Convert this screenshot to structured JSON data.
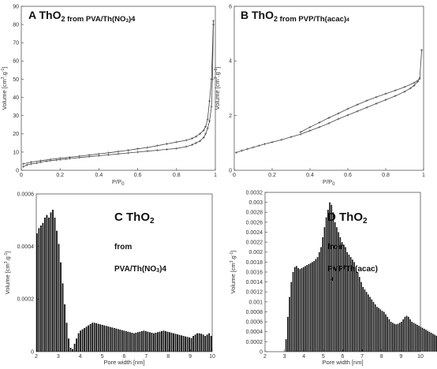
{
  "chart_data": [
    {
      "id": "A",
      "type": "line",
      "title": {
        "letter": "A",
        "compound_base": "ThO",
        "compound_sub": "2",
        "suffix_base": "from PVA/Th(NO",
        "suffix_sub": "3",
        "suffix_end": ")4"
      },
      "xlabel": {
        "base": "P/P",
        "sub": "0"
      },
      "ylabel": {
        "pre": "Volume [cm",
        "sup1": "3",
        "mid": ".g",
        "sup2": "-1",
        "post": "]"
      },
      "xlim": [
        0,
        1
      ],
      "ylim": [
        0,
        90
      ],
      "xticks": [
        "0",
        "0.2",
        "0.4",
        "0.6",
        "0.8",
        "1"
      ],
      "yticks": [
        "0",
        "10",
        "20",
        "30",
        "40",
        "50",
        "60",
        "70",
        "80",
        "90"
      ],
      "series": [
        {
          "x": [
            0.01,
            0.03,
            0.05,
            0.08,
            0.1,
            0.13,
            0.15,
            0.18,
            0.2,
            0.23,
            0.25,
            0.3,
            0.35,
            0.4,
            0.45,
            0.5,
            0.55,
            0.6,
            0.65,
            0.7,
            0.75,
            0.8,
            0.85,
            0.88,
            0.9,
            0.92,
            0.94,
            0.95,
            0.96,
            0.97,
            0.98,
            0.985,
            0.99
          ],
          "y": [
            2,
            3,
            3.5,
            4,
            4.5,
            5,
            5.3,
            5.6,
            5.9,
            6.2,
            6.5,
            7,
            7.5,
            8,
            8.5,
            9,
            9.5,
            10,
            10.5,
            11,
            11.5,
            12,
            13,
            14,
            15,
            16,
            18,
            20,
            23,
            27,
            35,
            50,
            80
          ]
        },
        {
          "x": [
            0.99,
            0.98,
            0.97,
            0.96,
            0.95,
            0.94,
            0.92,
            0.9,
            0.88,
            0.85,
            0.8,
            0.75,
            0.7,
            0.65,
            0.6,
            0.55,
            0.5,
            0.45,
            0.4,
            0.35,
            0.3,
            0.25,
            0.2,
            0.15,
            0.1,
            0.05,
            0.01
          ],
          "y": [
            82,
            50,
            38,
            28,
            24,
            22,
            20,
            18.5,
            17.5,
            16.5,
            15.5,
            14.5,
            13.5,
            12.5,
            11.8,
            11,
            10.3,
            9.6,
            9,
            8.4,
            7.8,
            7.2,
            6.6,
            6,
            5.3,
            4.5,
            3.5
          ]
        }
      ]
    },
    {
      "id": "B",
      "type": "line",
      "title": {
        "letter": "B",
        "compound_base": "ThO",
        "compound_sub": "2",
        "suffix_base": "from PVP/Th(acac)",
        "suffix_sub": "",
        "suffix_end": "4"
      },
      "xlabel": {
        "base": "P/P",
        "sub": "0"
      },
      "ylabel": {
        "pre": "Volume [cm",
        "sup1": "3",
        "mid": ".g",
        "sup2": "-1",
        "post": "]"
      },
      "xlim": [
        0,
        1
      ],
      "ylim": [
        0,
        6
      ],
      "xticks": [
        "0",
        "0.2",
        "0.4",
        "0.6",
        "0.8",
        "1"
      ],
      "yticks": [
        "0",
        "2",
        "4",
        "6"
      ],
      "series": [
        {
          "x": [
            0.01,
            0.04,
            0.07,
            0.1,
            0.13,
            0.16,
            0.2,
            0.25,
            0.3,
            0.35,
            0.4,
            0.45,
            0.5,
            0.55,
            0.6,
            0.65,
            0.7,
            0.75,
            0.8,
            0.85,
            0.9,
            0.93,
            0.95,
            0.97,
            0.98,
            0.99
          ],
          "y": [
            0.65,
            0.72,
            0.78,
            0.84,
            0.9,
            0.96,
            1.03,
            1.12,
            1.22,
            1.32,
            1.45,
            1.58,
            1.72,
            1.88,
            2.02,
            2.16,
            2.3,
            2.44,
            2.58,
            2.72,
            2.88,
            3,
            3.1,
            3.25,
            3.4,
            4.4
          ]
        },
        {
          "x": [
            0.98,
            0.95,
            0.9,
            0.85,
            0.8,
            0.75,
            0.7,
            0.65,
            0.6,
            0.55,
            0.5,
            0.45,
            0.4,
            0.35
          ],
          "y": [
            3.35,
            3.2,
            3.05,
            2.92,
            2.8,
            2.68,
            2.55,
            2.4,
            2.25,
            2.08,
            1.92,
            1.75,
            1.58,
            1.4
          ]
        }
      ]
    },
    {
      "id": "C",
      "type": "bar",
      "title": {
        "letter": "C",
        "compound_base": "ThO",
        "compound_sub": "2",
        "line2": "from",
        "line3_base": "PVA/Th(NO",
        "line3_sub": "3",
        "line3_end": ")4"
      },
      "xlabel": "Pore width [nm]",
      "ylabel": {
        "pre": "Volume [cm",
        "sup1": "3",
        "mid": ".g",
        "sup2": "-1",
        "post": "]"
      },
      "xlim": [
        2,
        10
      ],
      "ylim": [
        0,
        0.0006
      ],
      "xticks": [
        "2",
        "3",
        "4",
        "5",
        "6",
        "7",
        "8",
        "9",
        "10"
      ],
      "yticks": [
        "0",
        "0.0002",
        "0.0004",
        "0.0006"
      ],
      "bins": {
        "start": 2,
        "width": 0.09
      },
      "values": [
        0.00045,
        0.00047,
        0.00048,
        0.00049,
        0.00051,
        0.00052,
        0.00051,
        0.00053,
        0.00054,
        0.00051,
        0.00046,
        0.00041,
        0.00034,
        0.00026,
        0.00018,
        0.00011,
        5e-05,
        1.5e-05,
        1e-05,
        3e-05,
        5e-05,
        7e-05,
        8e-05,
        8.5e-05,
        9e-05,
        9.5e-05,
        0.0001,
        0.000105,
        0.00011,
        0.00011,
        0.000108,
        0.000106,
        0.000104,
        0.000102,
        0.0001,
        9.8e-05,
        9.6e-05,
        9.4e-05,
        9.2e-05,
        9e-05,
        8.8e-05,
        8.6e-05,
        8.4e-05,
        8.2e-05,
        8e-05,
        7.8e-05,
        7.6e-05,
        7.4e-05,
        7.2e-05,
        7e-05,
        7.2e-05,
        7.4e-05,
        7.6e-05,
        7.8e-05,
        8e-05,
        7.8e-05,
        7.6e-05,
        7.4e-05,
        7.2e-05,
        7e-05,
        7.2e-05,
        7.4e-05,
        7.6e-05,
        7.8e-05,
        8e-05,
        7.8e-05,
        7.6e-05,
        7.4e-05,
        7.2e-05,
        7e-05,
        6.8e-05,
        6.6e-05,
        6.4e-05,
        6.2e-05,
        6e-05,
        5.8e-05,
        5.6e-05,
        5.4e-05,
        5.2e-05,
        6e-05,
        6.5e-05,
        7e-05,
        7e-05,
        6.8e-05,
        6.5e-05,
        6e-05,
        6.5e-05,
        7e-05,
        6e-05
      ]
    },
    {
      "id": "D",
      "type": "bar",
      "title": {
        "letter": "D",
        "compound_base": "ThO",
        "compound_sub": "2",
        "line2": "from",
        "line3_base": "PVP/Th(acac)",
        "line3_sub": "",
        "line3_end": "",
        "line4": "4"
      },
      "xlabel": "Pore width [nm]",
      "ylabel": {
        "pre": "Volume [cm",
        "sup1": "3",
        "mid": ".g",
        "sup2": "-1",
        "post": "]"
      },
      "xlim": [
        2,
        10
      ],
      "ylim": [
        0,
        0.0032
      ],
      "xticks": [
        "2",
        "3",
        "4",
        "5",
        "6",
        "7",
        "8",
        "9",
        "10"
      ],
      "yticks": [
        "0",
        "0.0002",
        "0.0004",
        "0.0006",
        "0.0008",
        "0.001",
        "0.0012",
        "0.0014",
        "0.0016",
        "0.0018",
        "0.002",
        "0.0022",
        "0.0024",
        "0.0026",
        "0.0028",
        "0.003",
        "0.0032"
      ],
      "bins": {
        "start": 3.05,
        "width": 0.09
      },
      "values": [
        0.00025,
        0.0007,
        0.0011,
        0.0014,
        0.0016,
        0.0017,
        0.00172,
        0.00168,
        0.00166,
        0.00168,
        0.0017,
        0.00172,
        0.00174,
        0.00176,
        0.00178,
        0.0018,
        0.00182,
        0.00186,
        0.0019,
        0.002,
        0.0021,
        0.0023,
        0.0025,
        0.0027,
        0.00285,
        0.003,
        0.00295,
        0.0028,
        0.0026,
        0.0025,
        0.0024,
        0.0023,
        0.0022,
        0.00215,
        0.0021,
        0.002,
        0.00195,
        0.0019,
        0.00185,
        0.0018,
        0.0017,
        0.0016,
        0.0015,
        0.0014,
        0.0013,
        0.00125,
        0.0012,
        0.00115,
        0.0011,
        0.00105,
        0.001,
        0.00095,
        0.0009,
        0.00088,
        0.00085,
        0.00082,
        0.0008,
        0.00075,
        0.0007,
        0.00065,
        0.0006,
        0.00058,
        0.00056,
        0.00055,
        0.00056,
        0.00058,
        0.0006,
        0.00065,
        0.0007,
        0.00072,
        0.0007,
        0.00065,
        0.0006,
        0.00058,
        0.00056,
        0.00054,
        0.00052,
        0.0005,
        0.00048,
        0.00046,
        0.00044,
        0.00042,
        0.0004,
        0.00038,
        0.00036,
        0.00034,
        0.00032,
        0.0003,
        0.00028,
        0.00026,
        0.00024,
        0.00022,
        0.0002,
        0.00018,
        0.00016,
        0.00014,
        0.00012
      ]
    }
  ]
}
